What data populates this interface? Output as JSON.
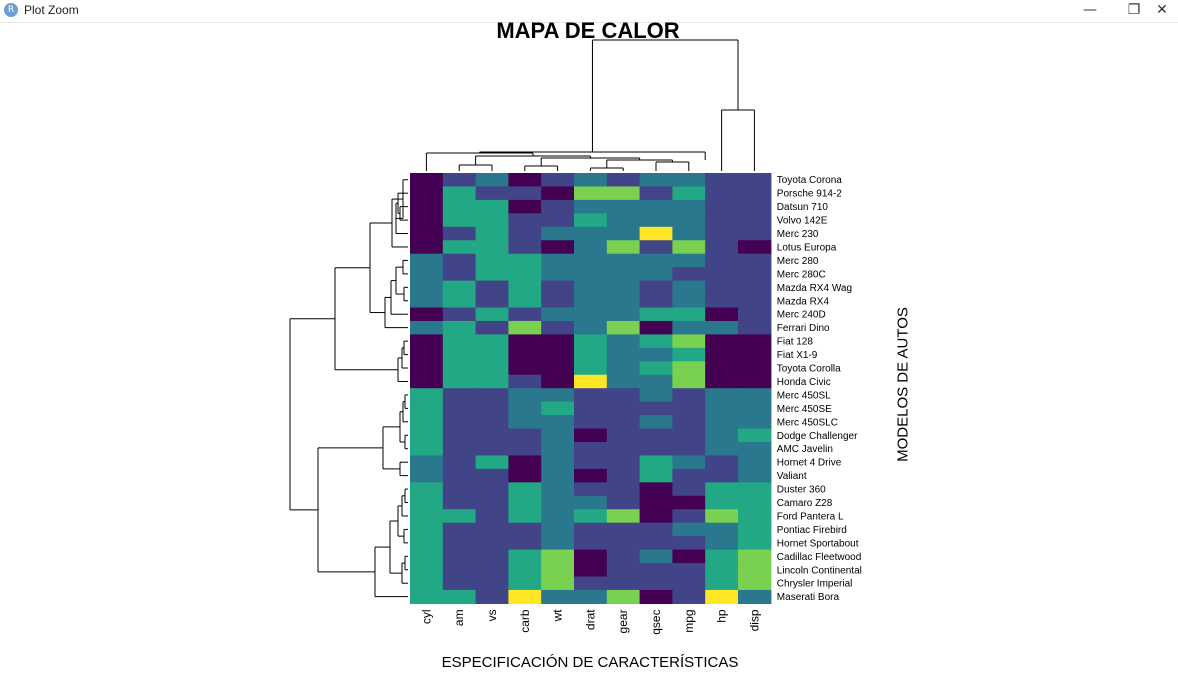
{
  "window": {
    "title": "Plot Zoom",
    "icon": "R",
    "buttons": {
      "minimize": "—",
      "restore": "❐",
      "close": "✕"
    }
  },
  "chart_data": {
    "type": "heatmap",
    "title": "MAPA DE CALOR",
    "xlabel": "ESPECIFICACIÓN DE CARACTERÍSTICAS",
    "ylabel": "MODELOS DE AUTOS",
    "columns": [
      "cyl",
      "am",
      "vs",
      "carb",
      "wt",
      "drat",
      "gear",
      "qsec",
      "mpg",
      "hp",
      "disp"
    ],
    "rows": [
      "Toyota Corona",
      "Porsche 914-2",
      "Datsun 710",
      "Volvo 142E",
      "Merc 230",
      "Lotus Europa",
      "Merc 280",
      "Merc 280C",
      "Mazda RX4 Wag",
      "Mazda RX4",
      "Merc 240D",
      "Ferrari Dino",
      "Fiat 128",
      "Fiat X1-9",
      "Toyota Corolla",
      "Honda Civic",
      "Merc 450SL",
      "Merc 450SE",
      "Merc 450SLC",
      "Dodge Challenger",
      "AMC Javelin",
      "Hornet 4 Drive",
      "Valiant",
      "Duster 360",
      "Camaro Z28",
      "Ford Pantera L",
      "Pontiac Firebird",
      "Hornet Sportabout",
      "Cadillac Fleetwood",
      "Lincoln Continental",
      "Chrysler Imperial",
      "Maserati Bora"
    ],
    "values": [
      [
        0,
        1,
        2,
        0,
        1,
        2,
        1,
        2,
        2,
        1,
        1
      ],
      [
        0,
        3,
        1,
        1,
        0,
        4,
        4,
        1,
        3,
        1,
        1
      ],
      [
        0,
        3,
        3,
        0,
        1,
        2,
        2,
        2,
        2,
        1,
        1
      ],
      [
        0,
        3,
        3,
        1,
        1,
        3,
        2,
        2,
        2,
        1,
        1
      ],
      [
        0,
        1,
        3,
        1,
        2,
        2,
        2,
        5,
        2,
        1,
        1
      ],
      [
        0,
        3,
        3,
        1,
        0,
        2,
        4,
        1,
        4,
        1,
        0
      ],
      [
        2,
        1,
        3,
        3,
        2,
        2,
        2,
        2,
        2,
        1,
        1
      ],
      [
        2,
        1,
        3,
        3,
        2,
        2,
        2,
        2,
        1,
        1,
        1
      ],
      [
        2,
        3,
        1,
        3,
        1,
        2,
        2,
        1,
        2,
        1,
        1
      ],
      [
        2,
        3,
        1,
        3,
        1,
        2,
        2,
        1,
        2,
        1,
        1
      ],
      [
        0,
        1,
        3,
        1,
        2,
        2,
        2,
        3,
        3,
        0,
        1
      ],
      [
        2,
        3,
        1,
        4,
        1,
        2,
        4,
        0,
        2,
        2,
        1
      ],
      [
        0,
        3,
        3,
        0,
        0,
        3,
        2,
        3,
        4,
        0,
        0
      ],
      [
        0,
        3,
        3,
        0,
        0,
        3,
        2,
        2,
        3,
        0,
        0
      ],
      [
        0,
        3,
        3,
        0,
        0,
        3,
        2,
        3,
        4,
        0,
        0
      ],
      [
        0,
        3,
        3,
        1,
        0,
        5,
        2,
        2,
        4,
        0,
        0
      ],
      [
        3,
        1,
        1,
        2,
        2,
        1,
        1,
        2,
        1,
        2,
        2
      ],
      [
        3,
        1,
        1,
        2,
        3,
        1,
        1,
        1,
        1,
        2,
        2
      ],
      [
        3,
        1,
        1,
        2,
        2,
        1,
        1,
        2,
        1,
        2,
        2
      ],
      [
        3,
        1,
        1,
        1,
        2,
        0,
        1,
        1,
        1,
        2,
        3
      ],
      [
        3,
        1,
        1,
        1,
        2,
        1,
        1,
        1,
        1,
        2,
        2
      ],
      [
        2,
        1,
        3,
        0,
        2,
        1,
        1,
        3,
        2,
        1,
        2
      ],
      [
        2,
        1,
        1,
        0,
        2,
        0,
        1,
        3,
        1,
        1,
        2
      ],
      [
        3,
        1,
        1,
        3,
        2,
        1,
        1,
        0,
        1,
        3,
        3
      ],
      [
        3,
        1,
        1,
        3,
        2,
        2,
        1,
        0,
        0,
        3,
        3
      ],
      [
        3,
        3,
        1,
        3,
        2,
        3,
        4,
        0,
        1,
        4,
        3
      ],
      [
        3,
        1,
        1,
        1,
        2,
        1,
        1,
        1,
        2,
        2,
        3
      ],
      [
        3,
        1,
        1,
        1,
        2,
        1,
        1,
        1,
        1,
        2,
        3
      ],
      [
        3,
        1,
        1,
        3,
        4,
        0,
        1,
        2,
        0,
        3,
        4
      ],
      [
        3,
        1,
        1,
        3,
        4,
        0,
        1,
        1,
        1,
        3,
        4
      ],
      [
        3,
        1,
        1,
        3,
        4,
        1,
        1,
        1,
        1,
        3,
        4
      ],
      [
        3,
        3,
        1,
        5,
        2,
        2,
        4,
        0,
        1,
        5,
        2
      ]
    ],
    "palette": [
      "#440154",
      "#414487",
      "#2a788e",
      "#22a884",
      "#7ad151",
      "#fde725"
    ]
  }
}
